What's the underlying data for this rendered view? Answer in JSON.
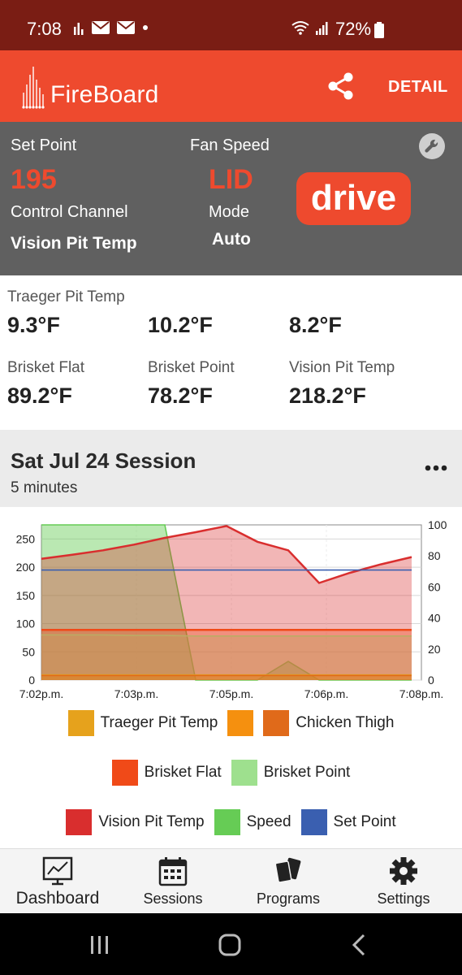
{
  "status_bar": {
    "time": "7:08",
    "battery": "72%"
  },
  "header": {
    "brand": "FireBoard",
    "detail_label": "DETAIL"
  },
  "control": {
    "set_point_label": "Set Point",
    "set_point_value": "195",
    "fan_speed_label": "Fan Speed",
    "fan_speed_value": "LID",
    "control_channel_label": "Control Channel",
    "control_channel_value": "Vision Pit Temp",
    "mode_label": "Mode",
    "mode_value": "Auto",
    "drive_label": "drive"
  },
  "probes": [
    {
      "label": "Traeger Pit Temp",
      "value": "9.3°F"
    },
    {
      "label": "",
      "value": "10.2°F"
    },
    {
      "label": "",
      "value": "8.2°F"
    },
    {
      "label": "Brisket Flat",
      "value": "89.2°F"
    },
    {
      "label": "Brisket Point",
      "value": "78.2°F"
    },
    {
      "label": "Vision Pit Temp",
      "value": "218.2°F"
    }
  ],
  "session": {
    "title": "Sat Jul 24 Session",
    "duration": "5 minutes"
  },
  "chart_data": {
    "type": "area",
    "x_ticks": [
      "7:02p.m.",
      "7:03p.m.",
      "7:05p.m.",
      "7:06p.m.",
      "7:08p.m."
    ],
    "y_left_ticks": [
      0,
      50,
      100,
      150,
      200,
      250
    ],
    "y_right_ticks": [
      0,
      20,
      40,
      60,
      80,
      100
    ],
    "ylim_left": [
      0,
      275
    ],
    "ylim_right": [
      0,
      100
    ],
    "grid": true,
    "series": [
      {
        "name": "Traeger Pit Temp",
        "color": "#e6a21c",
        "values": [
          9,
          9,
          9,
          9,
          9,
          9,
          9,
          9,
          9,
          9,
          9,
          9,
          9
        ]
      },
      {
        "name": "Chicken Thigh",
        "color": "#e06a1a",
        "values": [
          8,
          8,
          8,
          8,
          8,
          8,
          8,
          8,
          8,
          8,
          8,
          8,
          8
        ]
      },
      {
        "name": "Brisket Flat",
        "color": "#f04a18",
        "values": [
          89,
          89,
          89,
          89,
          89,
          89,
          89,
          89,
          89,
          89,
          89,
          89,
          89
        ]
      },
      {
        "name": "Brisket Point",
        "color": "#9ee08e",
        "values": [
          80,
          80,
          80,
          79,
          79,
          78,
          78,
          78,
          78,
          78,
          78,
          78,
          78
        ]
      },
      {
        "name": "Vision Pit Temp",
        "color": "#d92e2e",
        "values": [
          215,
          222,
          230,
          240,
          252,
          262,
          273,
          245,
          230,
          172,
          190,
          205,
          218
        ]
      },
      {
        "name": "Speed",
        "color": "#66cc55",
        "axis": "right",
        "values": [
          100,
          100,
          100,
          100,
          100,
          0,
          0,
          0,
          12,
          0,
          0,
          0,
          0
        ]
      },
      {
        "name": "Set Point",
        "color": "#3a5fb0",
        "values": [
          195,
          195,
          195,
          195,
          195,
          195,
          195,
          195,
          195,
          195,
          195,
          195,
          195
        ]
      }
    ],
    "legend": [
      [
        "Traeger Pit Temp",
        "",
        "Chicken Thigh"
      ],
      [
        "Brisket Flat",
        "Brisket Point"
      ],
      [
        "Vision Pit Temp",
        "Speed",
        "Set Point"
      ]
    ],
    "legend_colors": {
      "Traeger Pit Temp": "#e6a21c",
      "": "#f5900f",
      "Chicken Thigh": "#e06a1a",
      "Brisket Flat": "#f04a18",
      "Brisket Point": "#9ee08e",
      "Vision Pit Temp": "#d92e2e",
      "Speed": "#66cc55",
      "Set Point": "#3a5fb0"
    }
  },
  "nav": [
    {
      "label": "Dashboard",
      "icon": "dashboard-icon"
    },
    {
      "label": "Sessions",
      "icon": "calendar-icon"
    },
    {
      "label": "Programs",
      "icon": "programs-icon"
    },
    {
      "label": "Settings",
      "icon": "gear-icon"
    }
  ]
}
